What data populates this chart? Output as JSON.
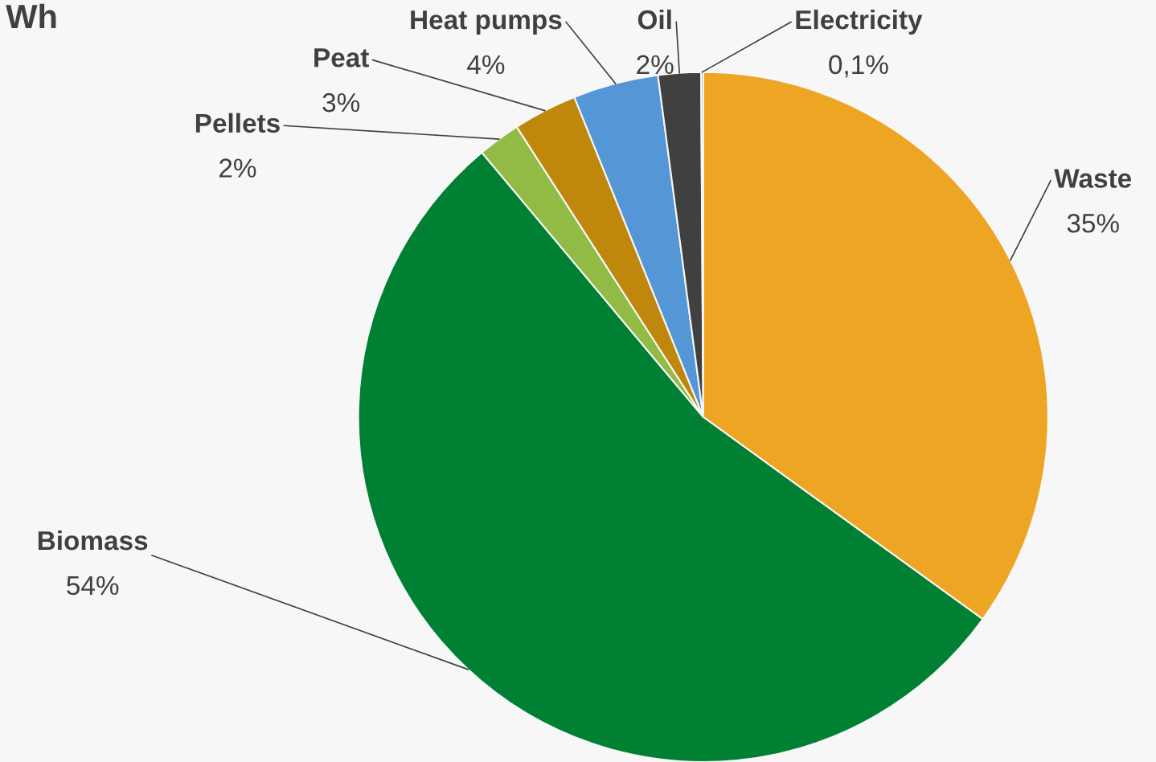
{
  "chart_data": {
    "type": "pie",
    "title": "Wh",
    "categories": [
      "Waste",
      "Biomass",
      "Pellets",
      "Peat",
      "Heat pumps",
      "Oil",
      "Electricity"
    ],
    "values": [
      35,
      54,
      2,
      3,
      4,
      2,
      0.1
    ],
    "value_labels": [
      "35%",
      "54%",
      "2%",
      "3%",
      "4%",
      "2%",
      "0,1%"
    ],
    "colors": [
      "#eda523",
      "#008033",
      "#92bb45",
      "#c0870d",
      "#5596d6",
      "#404040",
      "#a0a0a0"
    ],
    "legend": false
  }
}
